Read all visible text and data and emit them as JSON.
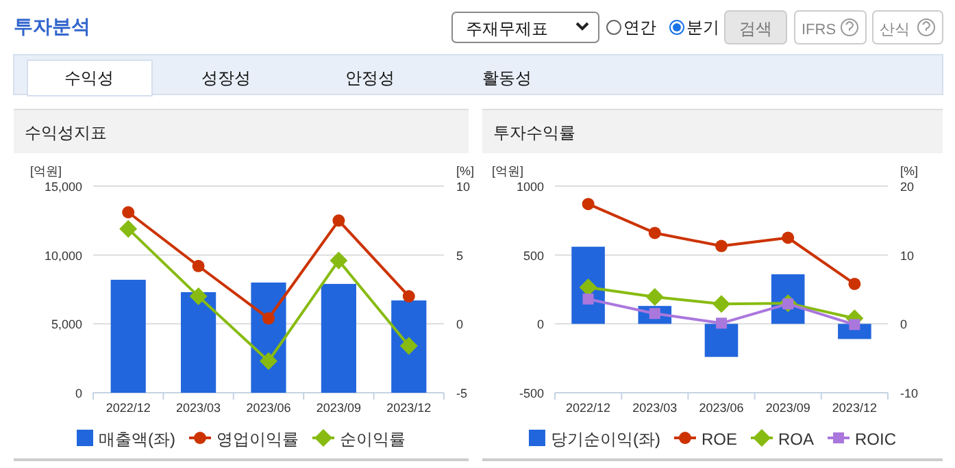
{
  "chart_data": [
    {
      "type": "other",
      "title": "투자분석",
      "annotations": [
        "주재무제표",
        "연간",
        "분기",
        "검색",
        "IFRS",
        "산식",
        "수익성",
        "성장성",
        "안정성",
        "활동성"
      ]
    },
    {
      "type": "bar",
      "title": "수익성지표",
      "ylabel": "[억원]",
      "y2label": "[%]",
      "categories": [
        "2022/12",
        "2023/03",
        "2023/06",
        "2023/09",
        "2023/12"
      ],
      "series": [
        {
          "name": "매출액(좌)",
          "type": "bar",
          "color": "#2266dd",
          "values": [
            8200,
            7300,
            8000,
            7900,
            6700
          ]
        },
        {
          "name": "영업이익률",
          "type": "line",
          "axis": "y2",
          "marker": "circle",
          "color": "#cc3300",
          "values": [
            8.1,
            4.2,
            0.4,
            7.5,
            2.0
          ]
        },
        {
          "name": "순이익률",
          "type": "line",
          "axis": "y2",
          "marker": "diamond",
          "color": "#88bb11",
          "values": [
            6.9,
            2.0,
            -2.7,
            4.6,
            -1.6
          ]
        }
      ],
      "ylim": [
        0,
        15000
      ],
      "yticks": [
        0,
        {
          "value": 5000,
          "label": "5,000"
        },
        {
          "value": 10000,
          "label": "10,000"
        },
        {
          "value": 15000,
          "label": "15,000"
        }
      ],
      "y2lim": [
        -5,
        10
      ],
      "y2ticks": [
        -5,
        0,
        5,
        10
      ],
      "grid": "y",
      "legend": "bottom",
      "line_style": "solid"
    },
    {
      "type": "bar",
      "title": "투자수익률",
      "ylabel": "[억원]",
      "y2label": "[%]",
      "categories": [
        "2022/12",
        "2023/03",
        "2023/06",
        "2023/09",
        "2023/12"
      ],
      "series": [
        {
          "name": "당기순이익(좌)",
          "type": "bar",
          "color": "#2266dd",
          "values": [
            560,
            130,
            -240,
            360,
            -110
          ]
        },
        {
          "name": "ROE",
          "type": "line",
          "axis": "y2",
          "marker": "circle",
          "color": "#cc3300",
          "values": [
            17.4,
            13.2,
            11.3,
            12.5,
            5.8
          ]
        },
        {
          "name": "ROA",
          "type": "line",
          "axis": "y2",
          "marker": "diamond",
          "color": "#88bb11",
          "values": [
            5.3,
            3.9,
            2.9,
            3.0,
            0.8
          ]
        },
        {
          "name": "ROIC",
          "type": "line",
          "axis": "y2",
          "marker": "square",
          "color": "#aa77dd",
          "values": [
            3.6,
            1.5,
            0.1,
            2.9,
            -0.1
          ]
        }
      ],
      "ylim": [
        -500,
        1000
      ],
      "yticks": [
        -500,
        0,
        500,
        1000
      ],
      "y2lim": [
        -10,
        20
      ],
      "y2ticks": [
        -10,
        0,
        10,
        20
      ],
      "grid": "y",
      "legend": "bottom",
      "line_style": "solid"
    }
  ]
}
